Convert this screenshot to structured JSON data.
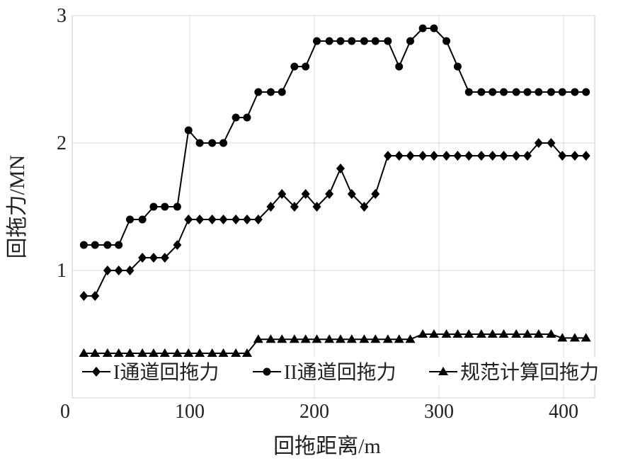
{
  "chart_data": {
    "type": "line",
    "x_label": "回拖距离/m",
    "y_label": "回拖力/MN",
    "x": [
      15,
      24,
      34,
      43,
      52,
      62,
      71,
      80,
      90,
      99,
      108,
      118,
      127,
      137,
      146,
      155,
      165,
      174,
      184,
      193,
      202,
      212,
      221,
      230,
      240,
      249,
      259,
      268,
      277,
      287,
      296,
      306,
      315,
      324,
      334,
      343,
      352,
      362,
      371,
      380,
      390,
      399,
      409,
      418
    ],
    "series": [
      {
        "name": "I通道回拖力",
        "color": "#000000",
        "marker": "diamond",
        "values": [
          0.8,
          0.8,
          1.0,
          1.0,
          1.0,
          1.1,
          1.1,
          1.1,
          1.2,
          1.4,
          1.4,
          1.4,
          1.4,
          1.4,
          1.4,
          1.4,
          1.5,
          1.6,
          1.5,
          1.6,
          1.5,
          1.6,
          1.8,
          1.6,
          1.5,
          1.6,
          1.9,
          1.9,
          1.9,
          1.9,
          1.9,
          1.9,
          1.9,
          1.9,
          1.9,
          1.9,
          1.9,
          1.9,
          1.9,
          2.0,
          2.0,
          1.9,
          1.9,
          1.9
        ]
      },
      {
        "name": "II通道回拖力",
        "color": "#000000",
        "marker": "circle",
        "values": [
          1.2,
          1.2,
          1.2,
          1.2,
          1.4,
          1.4,
          1.5,
          1.5,
          1.5,
          2.1,
          2.0,
          2.0,
          2.0,
          2.2,
          2.2,
          2.4,
          2.4,
          2.4,
          2.6,
          2.6,
          2.8,
          2.8,
          2.8,
          2.8,
          2.8,
          2.8,
          2.8,
          2.6,
          2.8,
          2.9,
          2.9,
          2.8,
          2.6,
          2.4,
          2.4,
          2.4,
          2.4,
          2.4,
          2.4,
          2.4,
          2.4,
          2.4,
          2.4,
          2.4
        ]
      },
      {
        "name": "规范计算回拖力",
        "color": "#000000",
        "marker": "triangle",
        "values": [
          0.35,
          0.35,
          0.35,
          0.35,
          0.35,
          0.35,
          0.35,
          0.35,
          0.35,
          0.35,
          0.35,
          0.35,
          0.35,
          0.35,
          0.35,
          0.46,
          0.46,
          0.46,
          0.46,
          0.46,
          0.46,
          0.46,
          0.46,
          0.46,
          0.46,
          0.46,
          0.46,
          0.46,
          0.46,
          0.5,
          0.5,
          0.5,
          0.5,
          0.5,
          0.5,
          0.5,
          0.5,
          0.5,
          0.5,
          0.5,
          0.5,
          0.47,
          0.47,
          0.47
        ]
      }
    ],
    "xlim": [
      0,
      425
    ],
    "xticks": [
      0,
      100,
      200,
      300,
      400
    ],
    "ylim": [
      0,
      3
    ],
    "yticks": [
      1,
      2,
      3
    ],
    "grid": true,
    "legend": "bottom"
  }
}
